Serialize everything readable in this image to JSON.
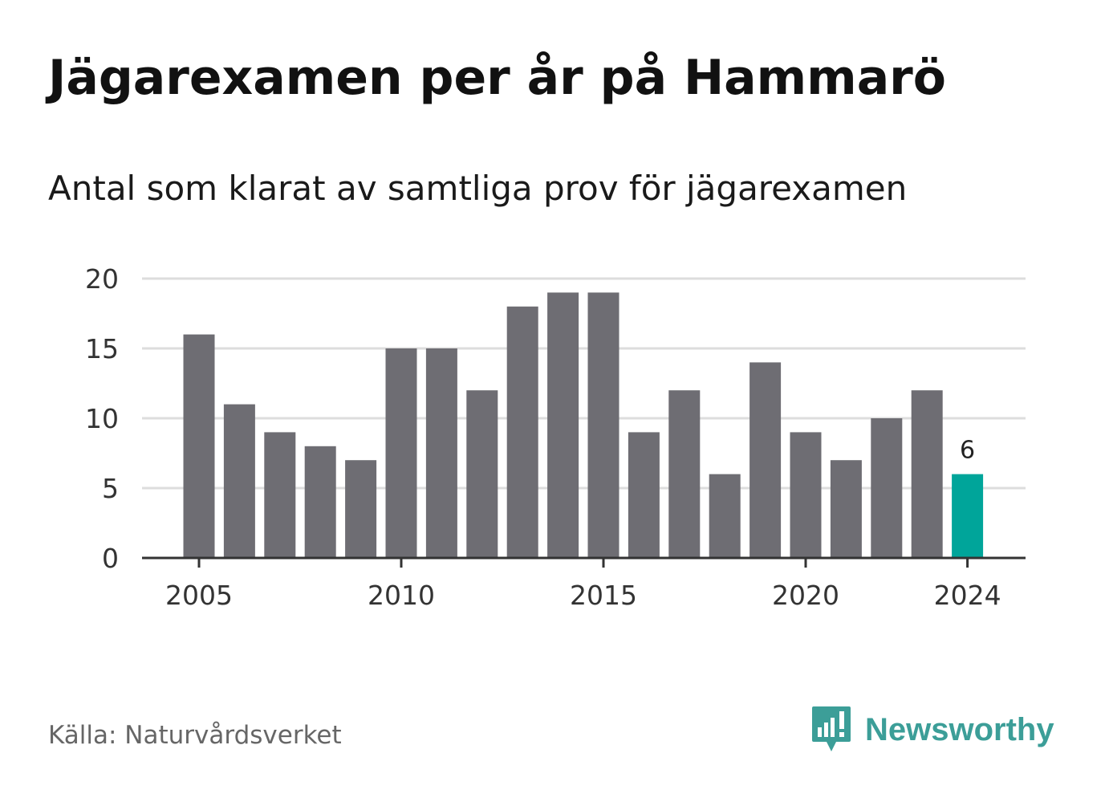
{
  "header": {
    "title": "Jägarexamen per år på Hammarö",
    "subtitle": "Antal som klarat av samtliga prov för jägarexamen"
  },
  "footer": {
    "source": "Källa: Naturvårdsverket",
    "brand": "Newsworthy",
    "brand_icon": "bar-chart-speech-bubble-icon"
  },
  "colors": {
    "bar": "#6e6d73",
    "highlight": "#00a59a",
    "grid": "#dddddd",
    "axis": "#333333",
    "brand": "#3c9e98"
  },
  "chart_data": {
    "type": "bar",
    "title": "Jägarexamen per år på Hammarö",
    "subtitle": "Antal som klarat av samtliga prov för jägarexamen",
    "xlabel": "",
    "ylabel": "",
    "categories": [
      2005,
      2006,
      2007,
      2008,
      2009,
      2010,
      2011,
      2012,
      2013,
      2014,
      2015,
      2016,
      2017,
      2018,
      2019,
      2020,
      2021,
      2022,
      2023,
      2024
    ],
    "values": [
      16,
      11,
      9,
      8,
      7,
      15,
      15,
      12,
      18,
      19,
      19,
      9,
      12,
      6,
      14,
      9,
      7,
      10,
      12,
      6
    ],
    "ylim": [
      0,
      20
    ],
    "yticks": [
      0,
      5,
      10,
      15,
      20
    ],
    "xticks": [
      2005,
      2010,
      2015,
      2020,
      2024
    ],
    "highlight": {
      "category": 2024,
      "label": "6"
    },
    "grid": true,
    "legend": "none"
  }
}
